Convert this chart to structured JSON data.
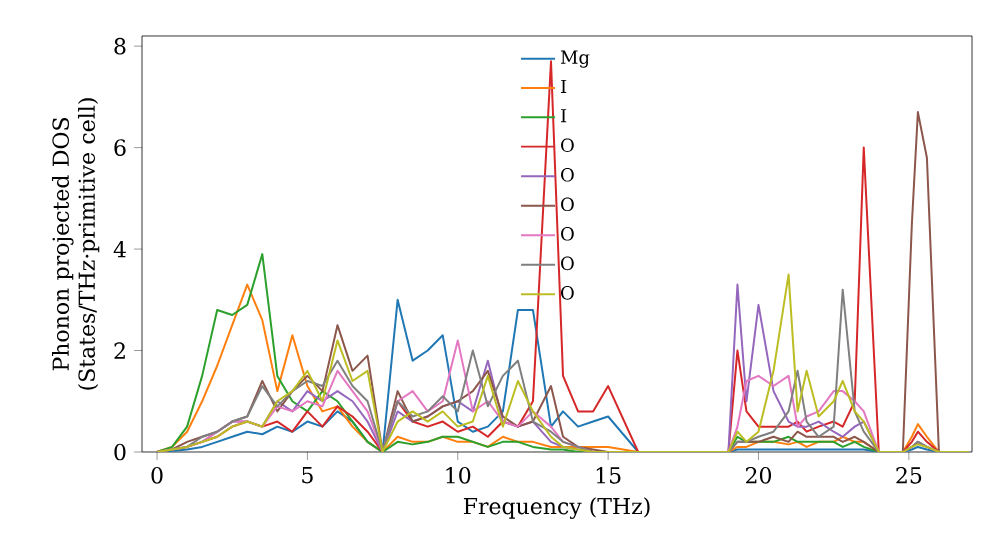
{
  "chart_data": {
    "type": "line",
    "xlabel": "Frequency (THz)",
    "ylabel": "Phonon projected DOS (States/THz·primitive cell)",
    "xlim": [
      -0.5,
      27.1
    ],
    "ylim": [
      0,
      8.2
    ],
    "xticks": [
      0,
      5,
      10,
      15,
      20,
      25
    ],
    "yticks": [
      0,
      2,
      4,
      6,
      8
    ],
    "legend": "top",
    "grid": false,
    "marker": "none",
    "line_style": "solid",
    "x": [
      0,
      0.5,
      1,
      1.5,
      2,
      2.5,
      3,
      3.5,
      4,
      4.5,
      5,
      5.5,
      6,
      6.5,
      7,
      7.5,
      8,
      8.5,
      9,
      9.5,
      10,
      10.5,
      11,
      11.5,
      12,
      12.5,
      13.1,
      13.5,
      14,
      14.5,
      15,
      16,
      19,
      19.3,
      19.6,
      20,
      20.5,
      21,
      21.3,
      21.6,
      22,
      22.5,
      22.8,
      23.2,
      23.5,
      24,
      24.8,
      25.1,
      25.3,
      25.6,
      26,
      27
    ],
    "series": [
      {
        "name": "Mg",
        "color": "#1f77b4",
        "values": [
          0,
          0.02,
          0.05,
          0.1,
          0.2,
          0.3,
          0.4,
          0.35,
          0.5,
          0.4,
          0.6,
          0.5,
          0.8,
          0.6,
          0.2,
          0,
          3.0,
          1.8,
          2.0,
          2.3,
          0.6,
          0.4,
          0.5,
          0.8,
          2.8,
          2.8,
          0.5,
          0.8,
          0.5,
          0.6,
          0.7,
          0,
          0,
          0.05,
          0.05,
          0.05,
          0.05,
          0.05,
          0.05,
          0.05,
          0.05,
          0.05,
          0.05,
          0.05,
          0.05,
          0,
          0,
          0.05,
          0.1,
          0.05,
          0,
          0
        ]
      },
      {
        "name": "I",
        "color": "#ff7f0e",
        "values": [
          0,
          0.1,
          0.4,
          1.0,
          1.7,
          2.5,
          3.3,
          2.6,
          1.2,
          2.3,
          1.3,
          0.8,
          0.9,
          0.5,
          0.2,
          0,
          0.3,
          0.2,
          0.2,
          0.3,
          0.2,
          0.2,
          0.1,
          0.3,
          0.2,
          0.2,
          0.1,
          0.1,
          0.1,
          0.1,
          0.1,
          0,
          0,
          0.1,
          0.1,
          0.2,
          0.2,
          0.15,
          0.2,
          0.1,
          0.2,
          0.2,
          0.3,
          0.2,
          0.2,
          0,
          0,
          0.3,
          0.55,
          0.3,
          0,
          0
        ]
      },
      {
        "name": "I",
        "color": "#2ca02c",
        "values": [
          0,
          0.1,
          0.5,
          1.5,
          2.8,
          2.7,
          2.9,
          3.9,
          1.5,
          1.0,
          0.8,
          1.2,
          1.0,
          0.6,
          0.2,
          0,
          0.2,
          0.15,
          0.2,
          0.3,
          0.3,
          0.2,
          0.1,
          0.2,
          0.2,
          0.1,
          0.05,
          0.05,
          0,
          0,
          0,
          0,
          0,
          0.3,
          0.2,
          0.2,
          0.2,
          0.3,
          0.2,
          0.2,
          0.2,
          0.2,
          0.1,
          0.2,
          0.1,
          0,
          0,
          null,
          null,
          null,
          null,
          null
        ]
      },
      {
        "name": "O",
        "color": "#d62728",
        "values": [
          0,
          0.05,
          0.1,
          0.2,
          0.3,
          0.5,
          0.6,
          0.5,
          0.6,
          0.4,
          0.8,
          0.5,
          0.9,
          0.7,
          0.4,
          0,
          1.0,
          0.6,
          0.5,
          0.6,
          0.4,
          0.5,
          0.3,
          0.6,
          0.5,
          1.0,
          7.7,
          1.5,
          0.8,
          0.8,
          1.3,
          0,
          0,
          2.0,
          0.8,
          0.5,
          0.5,
          0.5,
          0.6,
          0.4,
          0.5,
          0.6,
          0.5,
          1.0,
          6.0,
          0,
          0,
          0.2,
          0.4,
          0.2,
          0,
          0
        ]
      },
      {
        "name": "O",
        "color": "#9467bd",
        "values": [
          0,
          0.05,
          0.1,
          0.2,
          0.4,
          0.6,
          0.6,
          0.5,
          1.0,
          0.8,
          1.2,
          1.0,
          1.2,
          1.0,
          0.6,
          0,
          0.8,
          0.6,
          0.7,
          0.9,
          1.0,
          0.8,
          1.8,
          0.6,
          0.5,
          0.6,
          0.2,
          0.1,
          0.05,
          0,
          0,
          0,
          0,
          3.3,
          1.0,
          2.9,
          1.2,
          0.6,
          0.5,
          0.5,
          0.6,
          0.4,
          0.3,
          0.5,
          0.6,
          0,
          0,
          0.1,
          0.2,
          0.1,
          0,
          0
        ]
      },
      {
        "name": "O",
        "color": "#8c564b",
        "values": [
          0,
          0.05,
          0.2,
          0.3,
          0.4,
          0.6,
          0.7,
          1.4,
          0.8,
          1.2,
          1.5,
          1.2,
          2.5,
          1.6,
          1.9,
          0,
          1.2,
          0.6,
          0.7,
          0.9,
          1.0,
          1.2,
          1.6,
          0.7,
          0.5,
          0.6,
          1.3,
          0.3,
          0.1,
          0.05,
          0,
          0,
          0,
          0.2,
          0.2,
          0.2,
          0.3,
          0.2,
          0.4,
          0.3,
          0.3,
          0.3,
          0.2,
          0.3,
          0.2,
          0,
          0,
          4.5,
          6.7,
          5.8,
          0,
          0
        ]
      },
      {
        "name": "O",
        "color": "#e377c2",
        "values": [
          0,
          0.05,
          0.1,
          0.2,
          0.4,
          0.6,
          0.6,
          0.5,
          0.9,
          0.8,
          1.0,
          0.9,
          1.6,
          1.2,
          0.8,
          0,
          1.0,
          1.2,
          0.8,
          1.0,
          2.2,
          0.8,
          1.0,
          0.6,
          0.5,
          0.8,
          0.5,
          0.2,
          0.1,
          0,
          0,
          0,
          0,
          0.5,
          1.4,
          1.5,
          1.3,
          1.5,
          0.5,
          0.7,
          0.8,
          1.2,
          1.2,
          1.0,
          0.8,
          0,
          0,
          0.1,
          0.2,
          0.1,
          0,
          0
        ]
      },
      {
        "name": "O",
        "color": "#7f7f7f",
        "values": [
          0,
          0.05,
          0.1,
          0.3,
          0.4,
          0.6,
          0.7,
          1.3,
          0.9,
          1.2,
          1.4,
          1.3,
          1.8,
          1.3,
          1.0,
          0,
          1.0,
          0.7,
          0.8,
          1.1,
          0.8,
          2.0,
          0.9,
          1.5,
          1.8,
          0.6,
          0.4,
          0.2,
          0.1,
          0,
          0,
          0,
          0,
          0.2,
          0.2,
          0.3,
          0.4,
          0.8,
          1.6,
          0.6,
          0.3,
          0.5,
          3.2,
          0.8,
          0.4,
          0,
          0,
          0.1,
          0.2,
          0.1,
          0,
          0
        ]
      },
      {
        "name": "O",
        "color": "#bcbd22",
        "values": [
          0,
          0.05,
          0.1,
          0.2,
          0.3,
          0.5,
          0.6,
          0.5,
          1.0,
          1.2,
          1.6,
          1.0,
          2.2,
          1.4,
          1.6,
          0,
          0.6,
          0.8,
          0.6,
          0.8,
          0.5,
          0.6,
          1.5,
          0.5,
          1.4,
          0.8,
          0.3,
          0.1,
          0.05,
          0,
          0,
          0,
          0,
          0.4,
          0.2,
          0.4,
          1.6,
          3.5,
          0.8,
          1.6,
          0.7,
          1.0,
          1.4,
          0.8,
          0.6,
          0,
          0,
          0.1,
          0.15,
          0.1,
          0,
          0
        ]
      }
    ]
  }
}
